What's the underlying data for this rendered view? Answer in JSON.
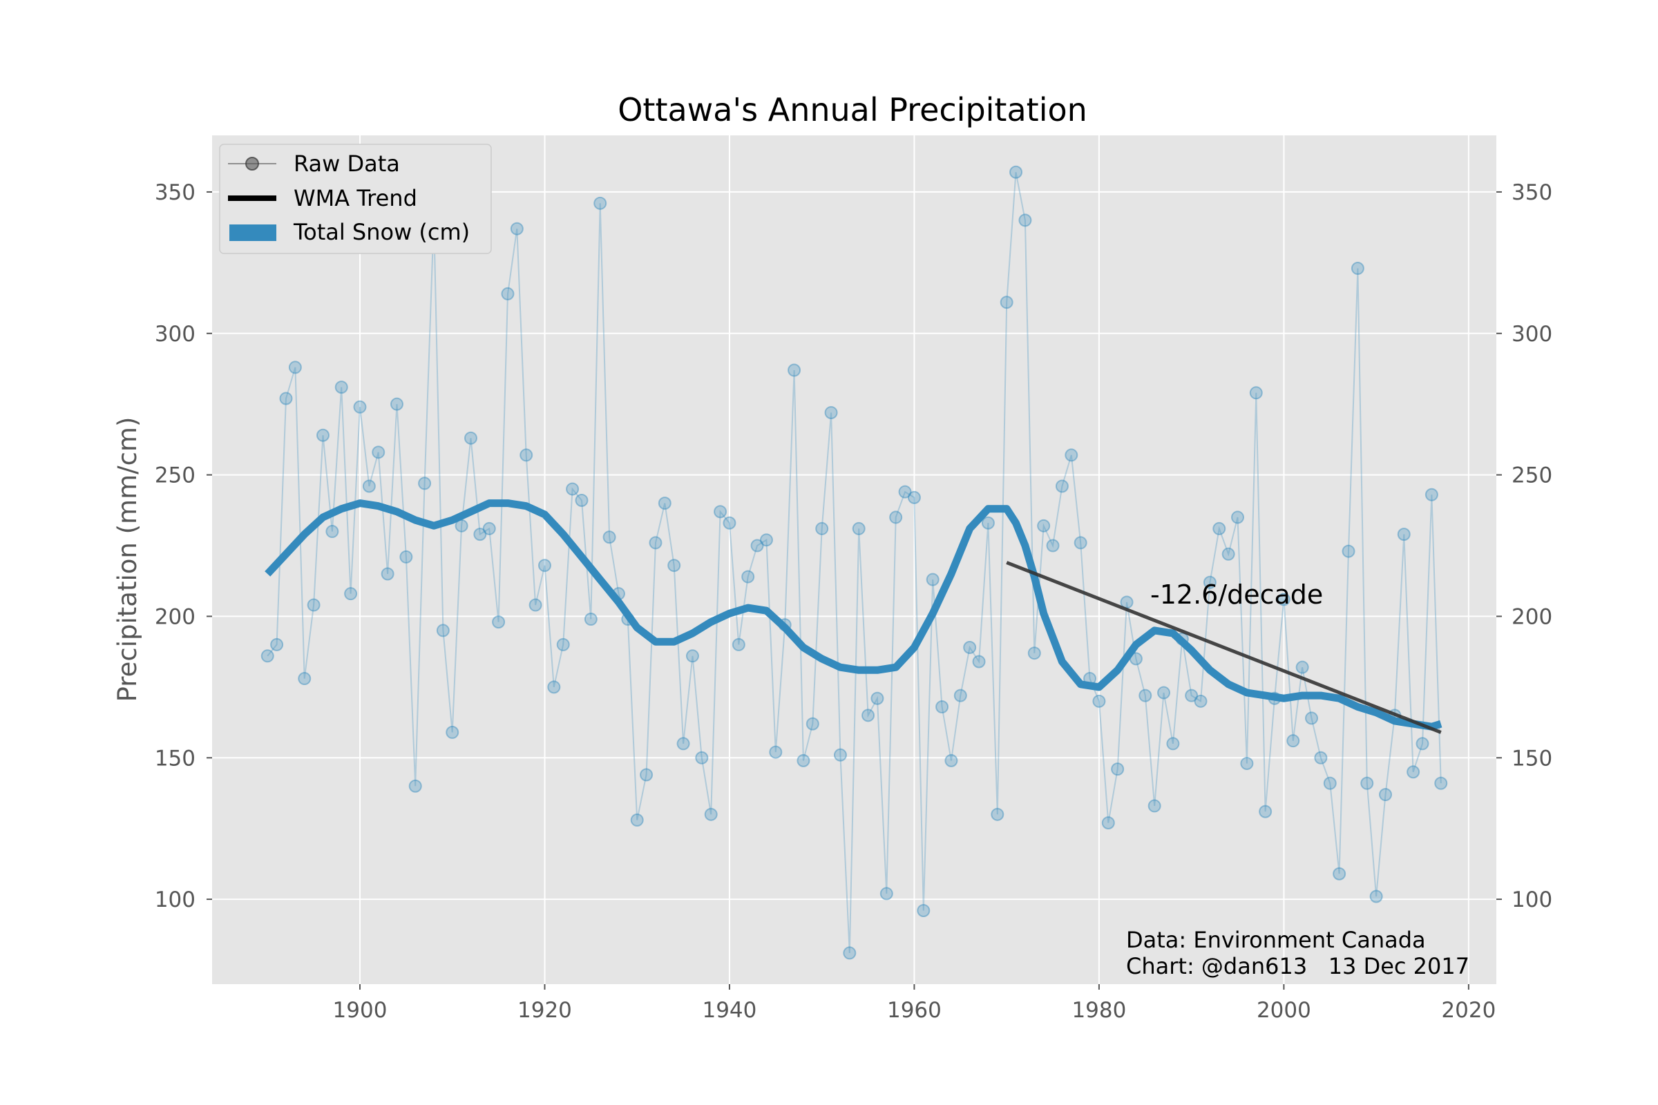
{
  "chart_data": {
    "type": "line",
    "title": "Ottawa's Annual Precipitation",
    "xlabel": "",
    "ylabel": "Precipitation (mm/cm)",
    "xlim": [
      1884,
      2023
    ],
    "ylim": [
      70,
      370
    ],
    "x_ticks": [
      1900,
      1920,
      1940,
      1960,
      1980,
      2000,
      2020
    ],
    "y_ticks": [
      100,
      150,
      200,
      250,
      300,
      350
    ],
    "grid": true,
    "legend_position": "top-left",
    "colors": {
      "background": "#e5e5e5",
      "grid": "#ffffff",
      "raw": "#348abd",
      "smooth": "#348abd",
      "trend": "#333333"
    },
    "legend": [
      {
        "label": "Raw Data",
        "marker": "line-circle"
      },
      {
        "label": "WMA Trend",
        "marker": "thick-line"
      },
      {
        "label": "Total Snow (cm)",
        "marker": "patch"
      }
    ],
    "series": [
      {
        "name": "Total Snow (cm)",
        "kind": "raw",
        "x": [
          1890,
          1891,
          1892,
          1893,
          1894,
          1895,
          1896,
          1897,
          1898,
          1899,
          1900,
          1901,
          1902,
          1903,
          1904,
          1905,
          1906,
          1907,
          1908,
          1909,
          1910,
          1911,
          1912,
          1913,
          1914,
          1915,
          1916,
          1917,
          1918,
          1919,
          1920,
          1921,
          1922,
          1923,
          1924,
          1925,
          1926,
          1927,
          1928,
          1929,
          1930,
          1931,
          1932,
          1933,
          1934,
          1935,
          1936,
          1937,
          1938,
          1939,
          1940,
          1941,
          1942,
          1943,
          1944,
          1945,
          1946,
          1947,
          1948,
          1949,
          1950,
          1951,
          1952,
          1953,
          1954,
          1955,
          1956,
          1957,
          1958,
          1959,
          1960,
          1961,
          1962,
          1963,
          1964,
          1965,
          1966,
          1967,
          1968,
          1969,
          1970,
          1971,
          1972,
          1973,
          1974,
          1975,
          1976,
          1977,
          1978,
          1979,
          1980,
          1981,
          1982,
          1983,
          1984,
          1985,
          1986,
          1987,
          1988,
          1989,
          1990,
          1991,
          1992,
          1993,
          1994,
          1995,
          1996,
          1997,
          1998,
          1999,
          2000,
          2001,
          2002,
          2003,
          2004,
          2005,
          2006,
          2007,
          2008,
          2009,
          2010,
          2011,
          2012,
          2013,
          2014,
          2015,
          2016,
          2017
        ],
        "values": [
          186,
          190,
          277,
          288,
          178,
          204,
          264,
          230,
          281,
          208,
          274,
          246,
          258,
          215,
          275,
          221,
          140,
          247,
          341,
          195,
          159,
          232,
          263,
          229,
          231,
          198,
          314,
          337,
          257,
          204,
          218,
          175,
          190,
          245,
          241,
          199,
          346,
          228,
          208,
          199,
          128,
          144,
          226,
          240,
          218,
          155,
          186,
          150,
          130,
          237,
          233,
          190,
          214,
          225,
          227,
          152,
          197,
          287,
          149,
          162,
          231,
          272,
          151,
          81,
          231,
          165,
          171,
          102,
          235,
          244,
          242,
          96,
          213,
          168,
          149,
          172,
          189,
          184,
          233,
          130,
          311,
          357,
          340,
          187,
          232,
          225,
          246,
          257,
          226,
          178,
          170,
          127,
          146,
          205,
          185,
          172,
          133,
          173,
          155,
          192,
          172,
          170,
          212,
          231,
          222,
          235,
          148,
          279,
          131,
          171,
          206,
          156,
          182,
          164,
          150,
          141,
          109,
          223,
          323,
          141,
          101,
          137,
          165,
          229,
          145,
          155,
          243,
          141
        ]
      },
      {
        "name": "WMA Trend",
        "kind": "smooth",
        "x": [
          1890,
          1892,
          1894,
          1896,
          1898,
          1900,
          1902,
          1904,
          1906,
          1908,
          1910,
          1912,
          1914,
          1916,
          1918,
          1920,
          1922,
          1924,
          1926,
          1928,
          1930,
          1932,
          1934,
          1936,
          1938,
          1940,
          1942,
          1944,
          1946,
          1948,
          1950,
          1952,
          1954,
          1956,
          1958,
          1960,
          1962,
          1964,
          1966,
          1968,
          1970,
          1971,
          1972,
          1973,
          1974,
          1976,
          1978,
          1980,
          1982,
          1984,
          1986,
          1988,
          1990,
          1992,
          1994,
          1996,
          1998,
          2000,
          2002,
          2004,
          2006,
          2008,
          2010,
          2012,
          2014,
          2016,
          2017
        ],
        "values": [
          215,
          222,
          229,
          235,
          238,
          240,
          239,
          237,
          234,
          232,
          234,
          237,
          240,
          240,
          239,
          236,
          229,
          221,
          213,
          205,
          196,
          191,
          191,
          194,
          198,
          201,
          203,
          202,
          196,
          189,
          185,
          182,
          181,
          181,
          182,
          189,
          201,
          215,
          231,
          238,
          238,
          233,
          225,
          214,
          201,
          184,
          176,
          175,
          181,
          190,
          195,
          194,
          188,
          181,
          176,
          173,
          172,
          171,
          172,
          172,
          171,
          168,
          166,
          163,
          162,
          161,
          162
        ]
      },
      {
        "name": "",
        "kind": "linear",
        "x": [
          1970,
          2017
        ],
        "values": [
          219,
          159
        ]
      }
    ],
    "annotations": [
      {
        "text": "-12.6/decade",
        "x": 1986,
        "y": 202
      },
      {
        "text": "Data: Environment Canada",
        "position": "bottom-right"
      },
      {
        "text": "Chart: @dan613   13 Dec 2017",
        "position": "bottom-right"
      }
    ]
  }
}
